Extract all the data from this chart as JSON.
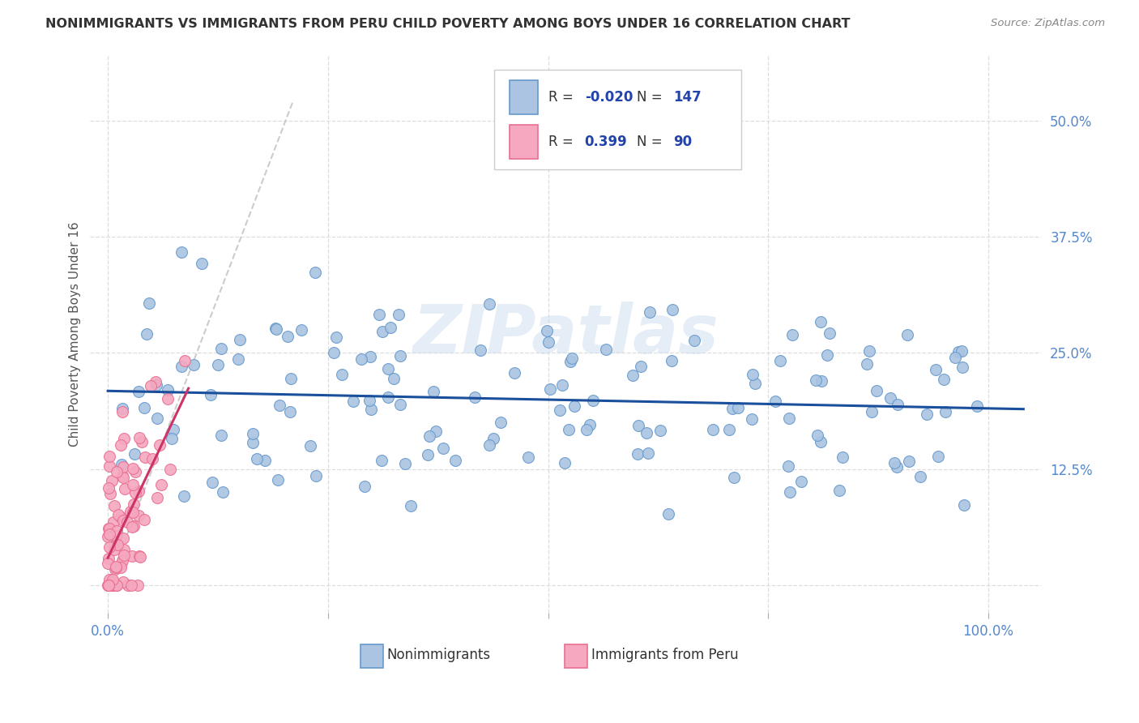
{
  "title": "NONIMMIGRANTS VS IMMIGRANTS FROM PERU CHILD POVERTY AMONG BOYS UNDER 16 CORRELATION CHART",
  "source": "Source: ZipAtlas.com",
  "ylabel": "Child Poverty Among Boys Under 16",
  "watermark": "ZIPatlas",
  "xlim": [
    -0.02,
    1.06
  ],
  "ylim": [
    -0.03,
    0.57
  ],
  "ytick_vals": [
    0.0,
    0.125,
    0.25,
    0.375,
    0.5
  ],
  "ytick_labels": [
    "",
    "12.5%",
    "25.0%",
    "37.5%",
    "50.0%"
  ],
  "xtick_vals": [
    0.0,
    0.25,
    0.5,
    0.75,
    1.0
  ],
  "xtick_labels": [
    "0.0%",
    "",
    "",
    "",
    "100.0%"
  ],
  "nonimmigrant_color": "#aac4e2",
  "immigrant_color": "#f5a8c0",
  "nonimmigrant_edge": "#6699cc",
  "immigrant_edge": "#e87090",
  "trendline_nonimmigrant": "#1a4f9c",
  "trendline_immigrant": "#cc3366",
  "dashed_diag_color": "#cccccc",
  "legend_R_nonimmigrant": "-0.020",
  "legend_N_nonimmigrant": "147",
  "legend_R_immigrant": "0.399",
  "legend_N_immigrant": "90",
  "legend_text_color": "#2244aa",
  "legend_label_color": "#333333",
  "background_color": "#ffffff",
  "grid_color": "#dddddd",
  "tick_label_color": "#5588cc",
  "bottom_legend_label_color": "#333333",
  "title_color": "#333333",
  "source_color": "#888888",
  "ylabel_color": "#555555"
}
